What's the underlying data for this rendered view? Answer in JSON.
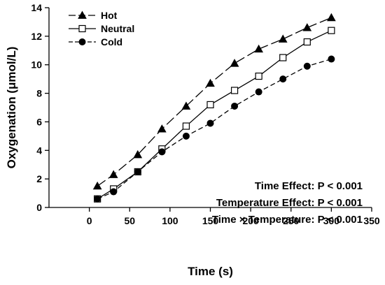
{
  "chart_data": {
    "type": "line",
    "xlabel": "Time (s)",
    "ylabel": "Oxygenation (μmol/L)",
    "xlim": [
      -50,
      350
    ],
    "ylim": [
      0,
      14
    ],
    "xticks": [
      0,
      50,
      100,
      150,
      200,
      250,
      300,
      350
    ],
    "yticks": [
      0,
      2,
      4,
      6,
      8,
      10,
      12,
      14
    ],
    "x": [
      10,
      30,
      60,
      90,
      120,
      150,
      180,
      210,
      240,
      270,
      300
    ],
    "series": [
      {
        "name": "Hot",
        "marker": "triangle",
        "dash": "long-dash",
        "color": "#000000",
        "values": [
          1.5,
          2.3,
          3.7,
          5.5,
          7.1,
          8.7,
          10.1,
          11.1,
          11.8,
          12.6,
          13.3
        ]
      },
      {
        "name": "Neutral",
        "marker": "open-square",
        "dash": "solid",
        "color": "#000000",
        "values": [
          0.6,
          1.3,
          2.5,
          4.1,
          5.7,
          7.2,
          8.2,
          9.2,
          10.5,
          11.6,
          12.4
        ]
      },
      {
        "name": "Cold",
        "marker": "circle",
        "dash": "dashed",
        "color": "#000000",
        "values": [
          0.6,
          1.1,
          2.5,
          3.9,
          5.0,
          5.9,
          7.1,
          8.1,
          9.0,
          9.9,
          10.4
        ]
      }
    ],
    "legend_position": "top-left",
    "grid": false,
    "annotations": [
      "Time Effect: P < 0.001",
      "Temperature Effect: P < 0.001",
      "Time × Temperature: P < 0.001"
    ]
  }
}
